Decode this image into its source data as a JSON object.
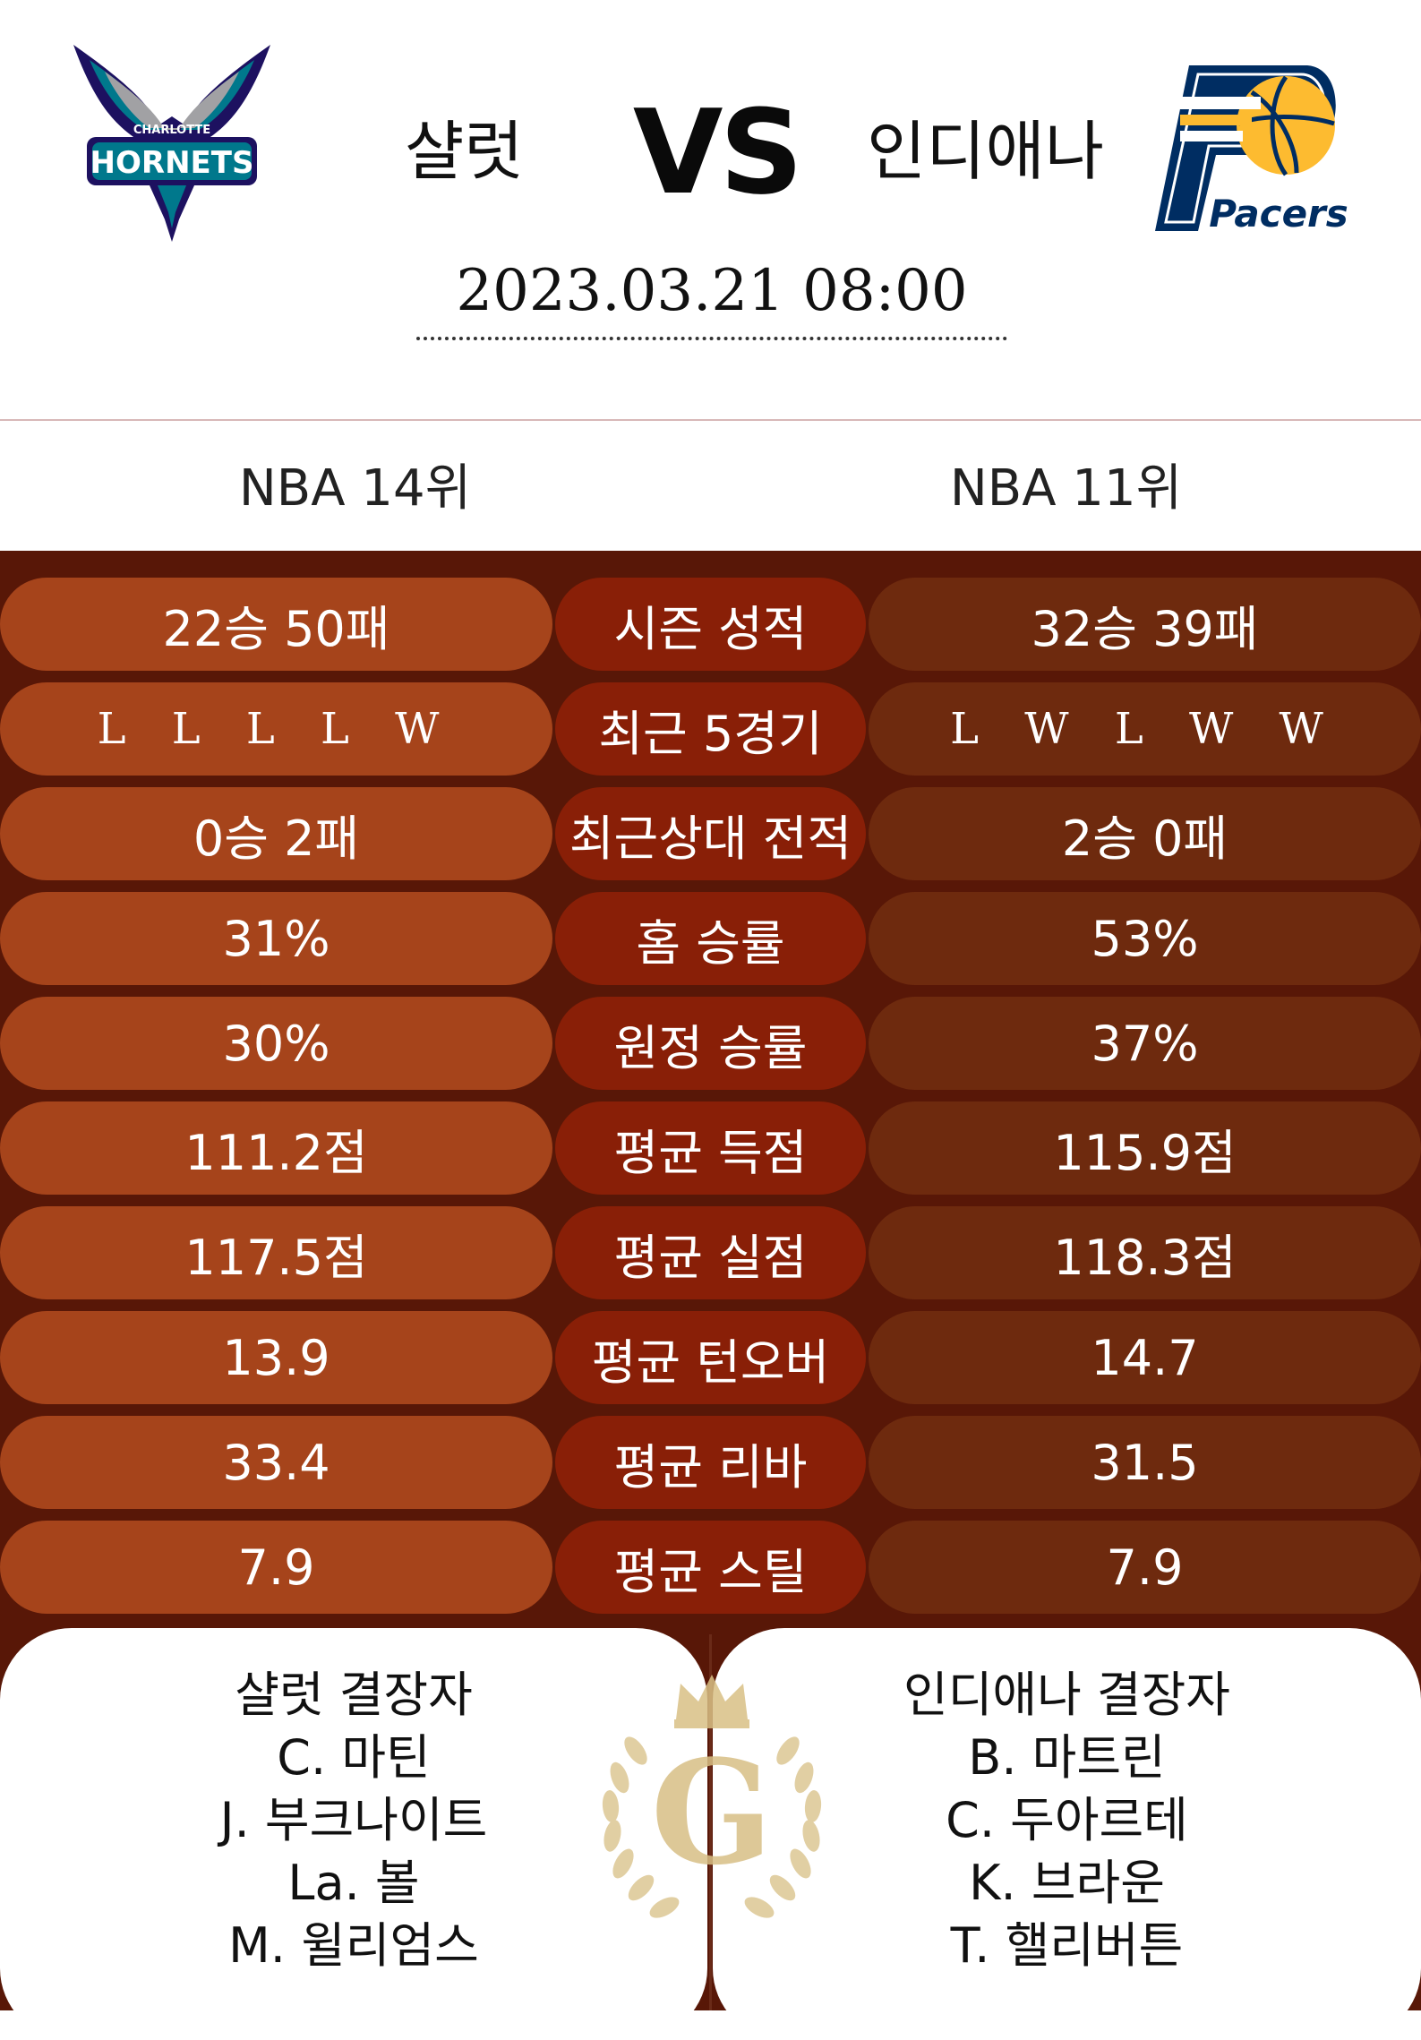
{
  "header": {
    "home_team": "샬럿",
    "away_team": "인디애나",
    "vs_label": "VS",
    "datetime": "2023.03.21   08:00",
    "home_logo_text": "HORNETS",
    "home_logo_city": "CHARLOTTE",
    "away_logo_text": "Pacers"
  },
  "ranks": {
    "home": "NBA 14위",
    "away": "NBA 11위"
  },
  "stats": [
    {
      "label": "시즌 성적",
      "home": "22승 50패",
      "away": "32승 39패"
    },
    {
      "label": "최근 5경기",
      "home": "L L L L W",
      "away": "L W L W W"
    },
    {
      "label": "최근상대 전적",
      "home": "0승 2패",
      "away": "2승 0패"
    },
    {
      "label": "홈 승률",
      "home": "31%",
      "away": "53%"
    },
    {
      "label": "원정 승률",
      "home": "30%",
      "away": "37%"
    },
    {
      "label": "평균 득점",
      "home": "111.2점",
      "away": "115.9점"
    },
    {
      "label": "평균 실점",
      "home": "117.5점",
      "away": "118.3점"
    },
    {
      "label": "평균 턴오버",
      "home": "13.9",
      "away": "14.7"
    },
    {
      "label": "평균 리바",
      "home": "33.4",
      "away": "31.5"
    },
    {
      "label": "평균 스틸",
      "home": "7.9",
      "away": "7.9"
    }
  ],
  "injuries": {
    "home_title": "샬럿 결장자",
    "home_players": [
      "C. 마틴",
      "J. 부크나이트",
      "La. 볼",
      "M. 윌리엄스"
    ],
    "away_title": "인디애나 결장자",
    "away_players": [
      "B. 마트린",
      "C. 두아르테",
      "K. 브라운",
      "T. 핼리버튼"
    ]
  },
  "emblem_letter": "G",
  "colors": {
    "panel_bg": "#581707",
    "pill_home": "#a6441b",
    "pill_label": "#891f07",
    "pill_away": "#6e2a0e",
    "gold": "#d8bf85"
  }
}
